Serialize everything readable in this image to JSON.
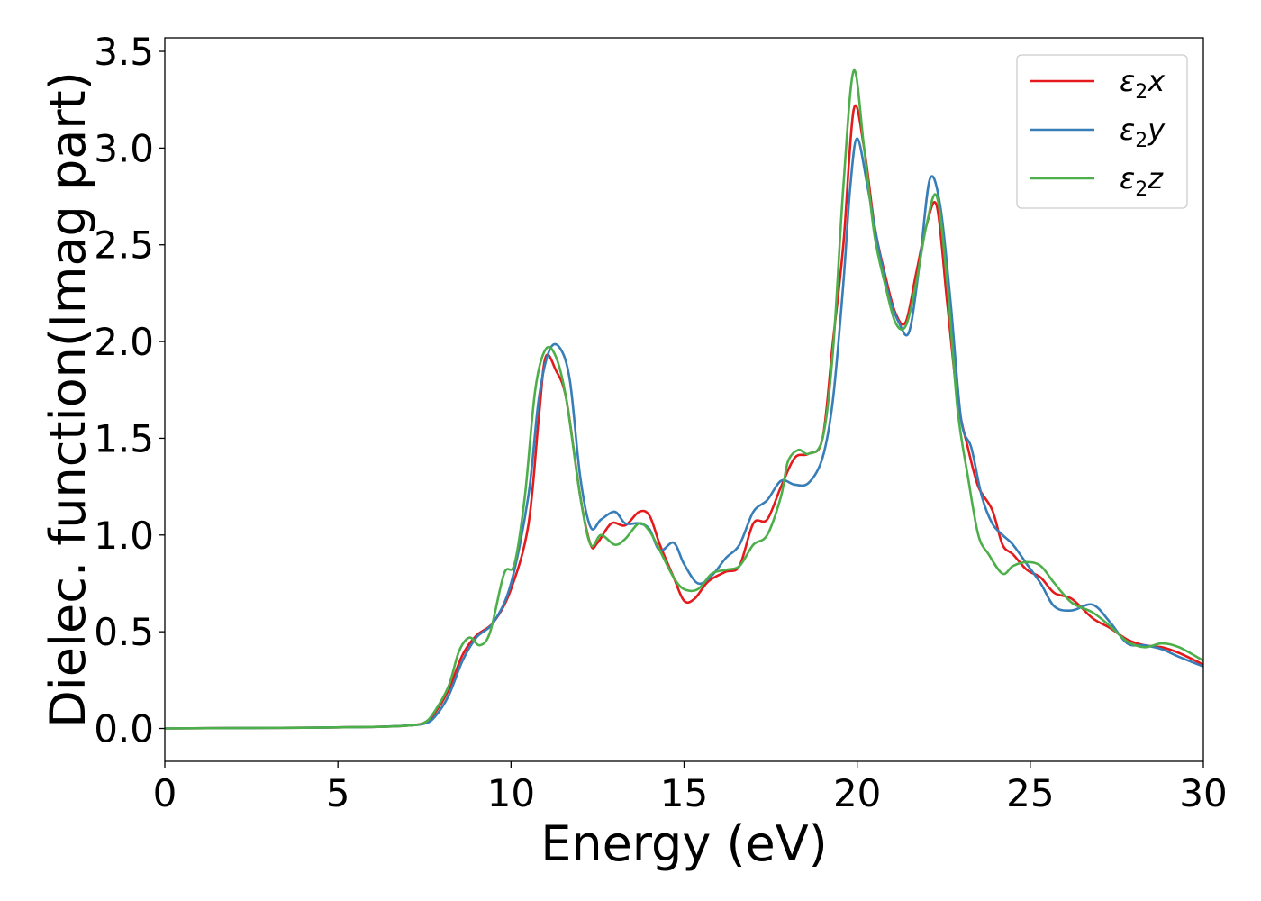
{
  "chart_data": {
    "type": "line",
    "xlabel": "Energy (eV)",
    "ylabel": "Dielec. function(Imag part)",
    "xlim": [
      0,
      30
    ],
    "ylim": [
      -0.17,
      3.57
    ],
    "x_ticks": [
      0,
      5,
      10,
      15,
      20,
      25,
      30
    ],
    "x_tick_labels": [
      "0",
      "5",
      "10",
      "15",
      "20",
      "25",
      "30"
    ],
    "y_ticks": [
      0.0,
      0.5,
      1.0,
      1.5,
      2.0,
      2.5,
      3.0,
      3.5
    ],
    "y_tick_labels": [
      "0.0",
      "0.5",
      "1.0",
      "1.5",
      "2.0",
      "2.5",
      "3.0",
      "3.5"
    ],
    "grid": false,
    "legend_position": "top-right",
    "series": [
      {
        "name": "ε₂x",
        "name_base": "ε",
        "name_sub": "2",
        "name_suffix": "x",
        "color": "#e41a1c",
        "points": [
          [
            0,
            0
          ],
          [
            2,
            0.002
          ],
          [
            4,
            0.004
          ],
          [
            6,
            0.008
          ],
          [
            7,
            0.015
          ],
          [
            7.5,
            0.03
          ],
          [
            7.8,
            0.08
          ],
          [
            8.2,
            0.2
          ],
          [
            8.6,
            0.38
          ],
          [
            9.0,
            0.48
          ],
          [
            9.5,
            0.55
          ],
          [
            10.0,
            0.72
          ],
          [
            10.5,
            1.05
          ],
          [
            10.8,
            1.6
          ],
          [
            11.0,
            1.92
          ],
          [
            11.3,
            1.85
          ],
          [
            11.6,
            1.7
          ],
          [
            12.0,
            1.2
          ],
          [
            12.3,
            0.95
          ],
          [
            12.5,
            0.96
          ],
          [
            12.9,
            1.06
          ],
          [
            13.3,
            1.05
          ],
          [
            13.7,
            1.12
          ],
          [
            14.0,
            1.1
          ],
          [
            14.3,
            0.95
          ],
          [
            14.7,
            0.78
          ],
          [
            15.0,
            0.66
          ],
          [
            15.3,
            0.67
          ],
          [
            15.7,
            0.76
          ],
          [
            16.2,
            0.81
          ],
          [
            16.6,
            0.84
          ],
          [
            17.0,
            1.06
          ],
          [
            17.4,
            1.08
          ],
          [
            17.8,
            1.25
          ],
          [
            18.2,
            1.4
          ],
          [
            18.6,
            1.42
          ],
          [
            19.0,
            1.5
          ],
          [
            19.3,
            2.0
          ],
          [
            19.6,
            2.5
          ],
          [
            19.9,
            3.2
          ],
          [
            20.2,
            3.0
          ],
          [
            20.5,
            2.6
          ],
          [
            20.8,
            2.35
          ],
          [
            21.1,
            2.15
          ],
          [
            21.4,
            2.1
          ],
          [
            21.7,
            2.35
          ],
          [
            22.0,
            2.6
          ],
          [
            22.3,
            2.7
          ],
          [
            22.6,
            2.2
          ],
          [
            22.9,
            1.7
          ],
          [
            23.2,
            1.45
          ],
          [
            23.5,
            1.25
          ],
          [
            23.9,
            1.13
          ],
          [
            24.2,
            0.95
          ],
          [
            24.5,
            0.9
          ],
          [
            24.9,
            0.82
          ],
          [
            25.3,
            0.78
          ],
          [
            25.7,
            0.7
          ],
          [
            26.2,
            0.67
          ],
          [
            26.8,
            0.57
          ],
          [
            27.3,
            0.52
          ],
          [
            27.8,
            0.46
          ],
          [
            28.3,
            0.43
          ],
          [
            28.8,
            0.42
          ],
          [
            29.3,
            0.39
          ],
          [
            30.0,
            0.33
          ]
        ]
      },
      {
        "name": "ε₂y",
        "name_base": "ε",
        "name_sub": "2",
        "name_suffix": "y",
        "color": "#377eb8",
        "points": [
          [
            0,
            0
          ],
          [
            2,
            0.002
          ],
          [
            4,
            0.004
          ],
          [
            6,
            0.008
          ],
          [
            7,
            0.015
          ],
          [
            7.5,
            0.025
          ],
          [
            7.8,
            0.06
          ],
          [
            8.2,
            0.17
          ],
          [
            8.6,
            0.35
          ],
          [
            9.0,
            0.47
          ],
          [
            9.5,
            0.55
          ],
          [
            10.0,
            0.75
          ],
          [
            10.5,
            1.2
          ],
          [
            10.8,
            1.7
          ],
          [
            11.1,
            1.95
          ],
          [
            11.4,
            1.97
          ],
          [
            11.7,
            1.8
          ],
          [
            12.0,
            1.3
          ],
          [
            12.3,
            1.04
          ],
          [
            12.6,
            1.08
          ],
          [
            13.0,
            1.12
          ],
          [
            13.3,
            1.06
          ],
          [
            13.7,
            1.06
          ],
          [
            14.0,
            1.03
          ],
          [
            14.3,
            0.92
          ],
          [
            14.7,
            0.96
          ],
          [
            15.0,
            0.85
          ],
          [
            15.4,
            0.75
          ],
          [
            15.8,
            0.79
          ],
          [
            16.2,
            0.88
          ],
          [
            16.6,
            0.95
          ],
          [
            17.0,
            1.12
          ],
          [
            17.4,
            1.18
          ],
          [
            17.8,
            1.28
          ],
          [
            18.2,
            1.26
          ],
          [
            18.6,
            1.27
          ],
          [
            19.0,
            1.4
          ],
          [
            19.3,
            1.7
          ],
          [
            19.6,
            2.3
          ],
          [
            19.8,
            2.8
          ],
          [
            20.0,
            3.05
          ],
          [
            20.3,
            2.8
          ],
          [
            20.6,
            2.5
          ],
          [
            20.9,
            2.25
          ],
          [
            21.2,
            2.1
          ],
          [
            21.5,
            2.05
          ],
          [
            21.8,
            2.4
          ],
          [
            22.1,
            2.84
          ],
          [
            22.4,
            2.7
          ],
          [
            22.7,
            2.2
          ],
          [
            23.0,
            1.6
          ],
          [
            23.3,
            1.45
          ],
          [
            23.6,
            1.2
          ],
          [
            23.9,
            1.06
          ],
          [
            24.2,
            1.0
          ],
          [
            24.5,
            0.95
          ],
          [
            24.9,
            0.85
          ],
          [
            25.3,
            0.75
          ],
          [
            25.7,
            0.63
          ],
          [
            26.2,
            0.61
          ],
          [
            26.8,
            0.64
          ],
          [
            27.3,
            0.55
          ],
          [
            27.8,
            0.44
          ],
          [
            28.3,
            0.43
          ],
          [
            28.8,
            0.41
          ],
          [
            29.3,
            0.37
          ],
          [
            30.0,
            0.32
          ]
        ]
      },
      {
        "name": "ε₂z",
        "name_base": "ε",
        "name_sub": "2",
        "name_suffix": "z",
        "color": "#4daf4a",
        "points": [
          [
            0,
            0
          ],
          [
            2,
            0.002
          ],
          [
            4,
            0.004
          ],
          [
            6,
            0.008
          ],
          [
            7,
            0.015
          ],
          [
            7.5,
            0.03
          ],
          [
            7.8,
            0.09
          ],
          [
            8.2,
            0.22
          ],
          [
            8.5,
            0.4
          ],
          [
            8.8,
            0.47
          ],
          [
            9.1,
            0.43
          ],
          [
            9.4,
            0.5
          ],
          [
            9.8,
            0.8
          ],
          [
            10.1,
            0.85
          ],
          [
            10.4,
            1.2
          ],
          [
            10.7,
            1.75
          ],
          [
            11.0,
            1.96
          ],
          [
            11.3,
            1.92
          ],
          [
            11.6,
            1.7
          ],
          [
            12.0,
            1.2
          ],
          [
            12.3,
            0.95
          ],
          [
            12.6,
            1.0
          ],
          [
            13.0,
            0.95
          ],
          [
            13.3,
            0.98
          ],
          [
            13.7,
            1.06
          ],
          [
            14.0,
            1.02
          ],
          [
            14.3,
            0.92
          ],
          [
            14.7,
            0.78
          ],
          [
            15.0,
            0.72
          ],
          [
            15.4,
            0.72
          ],
          [
            15.8,
            0.8
          ],
          [
            16.2,
            0.82
          ],
          [
            16.6,
            0.84
          ],
          [
            17.0,
            0.95
          ],
          [
            17.4,
            1.0
          ],
          [
            17.8,
            1.2
          ],
          [
            18.0,
            1.38
          ],
          [
            18.3,
            1.44
          ],
          [
            18.6,
            1.42
          ],
          [
            19.0,
            1.5
          ],
          [
            19.3,
            1.95
          ],
          [
            19.6,
            2.8
          ],
          [
            19.9,
            3.4
          ],
          [
            20.2,
            3.0
          ],
          [
            20.5,
            2.55
          ],
          [
            20.8,
            2.3
          ],
          [
            21.1,
            2.1
          ],
          [
            21.4,
            2.08
          ],
          [
            21.7,
            2.3
          ],
          [
            22.0,
            2.6
          ],
          [
            22.3,
            2.75
          ],
          [
            22.6,
            2.3
          ],
          [
            22.9,
            1.65
          ],
          [
            23.2,
            1.3
          ],
          [
            23.5,
            1.0
          ],
          [
            23.8,
            0.9
          ],
          [
            24.2,
            0.8
          ],
          [
            24.5,
            0.84
          ],
          [
            24.9,
            0.86
          ],
          [
            25.3,
            0.84
          ],
          [
            25.7,
            0.75
          ],
          [
            26.2,
            0.65
          ],
          [
            26.8,
            0.6
          ],
          [
            27.3,
            0.53
          ],
          [
            27.8,
            0.45
          ],
          [
            28.3,
            0.42
          ],
          [
            28.8,
            0.44
          ],
          [
            29.3,
            0.42
          ],
          [
            30.0,
            0.35
          ]
        ]
      }
    ]
  }
}
